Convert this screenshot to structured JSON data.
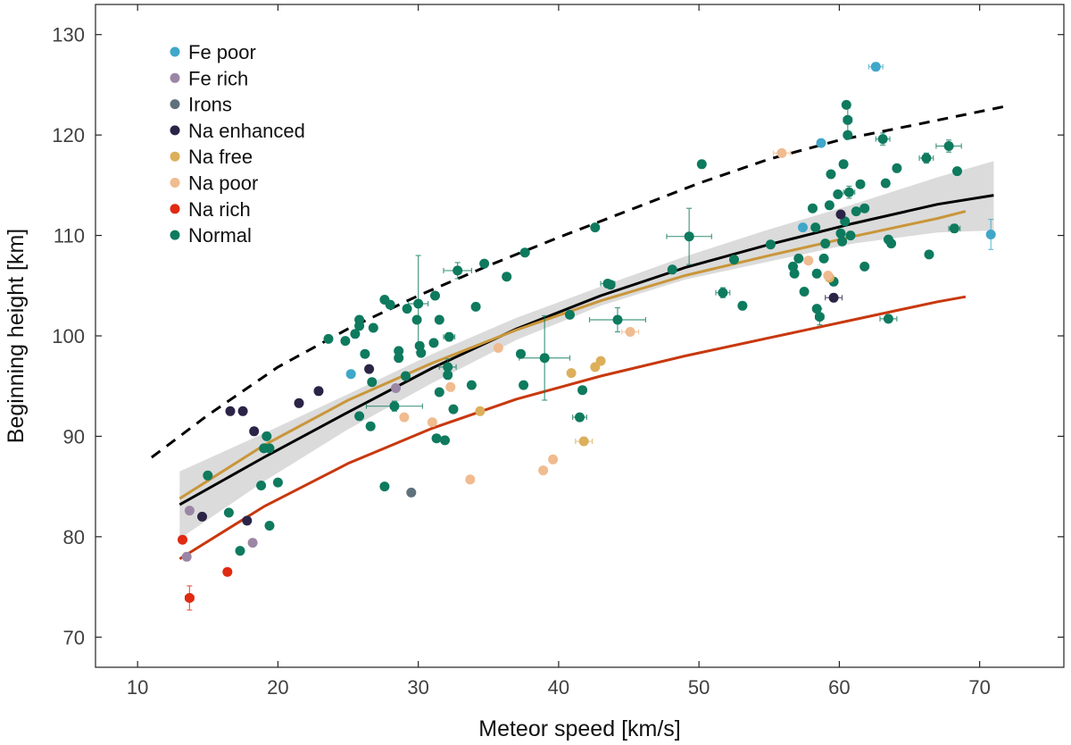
{
  "chart_data": {
    "type": "scatter",
    "xlabel": "Meteor speed [km/s]",
    "ylabel": "Beginning height [km]",
    "xlim": [
      7,
      76
    ],
    "ylim": [
      67,
      133
    ],
    "xticks": [
      10,
      20,
      30,
      40,
      50,
      60,
      70
    ],
    "yticks": [
      70,
      80,
      90,
      100,
      110,
      120,
      130
    ],
    "legend_position": "top-left",
    "series": [
      {
        "name": "Fe poor",
        "color": "#3fa7c9",
        "points": [
          [
            25.2,
            96.2
          ],
          [
            57.4,
            110.8
          ],
          [
            58.7,
            119.2
          ],
          [
            62.6,
            126.8
          ],
          [
            70.8,
            110.1
          ]
        ]
      },
      {
        "name": "Fe rich",
        "color": "#9b86a6",
        "points": [
          [
            13.7,
            82.6
          ],
          [
            13.5,
            78.0
          ],
          [
            18.2,
            79.4
          ],
          [
            28.4,
            94.8
          ]
        ]
      },
      {
        "name": "Irons",
        "color": "#5f717d",
        "points": [
          [
            29.5,
            84.4
          ]
        ]
      },
      {
        "name": "Na enhanced",
        "color": "#2b2447",
        "points": [
          [
            16.6,
            92.5
          ],
          [
            17.5,
            92.5
          ],
          [
            18.3,
            90.5
          ],
          [
            21.5,
            93.3
          ],
          [
            22.9,
            94.5
          ],
          [
            26.5,
            96.7
          ],
          [
            17.8,
            81.6
          ],
          [
            14.6,
            82.0
          ],
          [
            59.6,
            103.8
          ],
          [
            60.1,
            112.1
          ]
        ]
      },
      {
        "name": "Na free",
        "color": "#dcaf5a",
        "points": [
          [
            40.9,
            96.3
          ],
          [
            42.6,
            96.9
          ],
          [
            43.0,
            97.5
          ],
          [
            41.8,
            89.5
          ],
          [
            34.4,
            92.5
          ],
          [
            59.3,
            105.8
          ]
        ]
      },
      {
        "name": "Na poor",
        "color": "#f0bb8f",
        "points": [
          [
            29.0,
            91.9
          ],
          [
            31.0,
            91.4
          ],
          [
            32.3,
            94.9
          ],
          [
            35.7,
            98.8
          ],
          [
            33.7,
            85.7
          ],
          [
            38.9,
            86.6
          ],
          [
            39.6,
            87.7
          ],
          [
            45.1,
            100.4
          ],
          [
            55.9,
            118.2
          ],
          [
            57.8,
            107.5
          ],
          [
            59.2,
            106.0
          ]
        ]
      },
      {
        "name": "Na rich",
        "color": "#e02a12",
        "points": [
          [
            13.2,
            79.7
          ],
          [
            13.7,
            73.9
          ],
          [
            16.4,
            76.5
          ]
        ]
      },
      {
        "name": "Normal",
        "color": "#0e7a5e",
        "points": [
          [
            23.6,
            99.7
          ],
          [
            24.8,
            99.5
          ],
          [
            25.5,
            100.2
          ],
          [
            25.8,
            101.6
          ],
          [
            25.8,
            101.0
          ],
          [
            26.2,
            98.2
          ],
          [
            26.8,
            100.8
          ],
          [
            25.8,
            92.0
          ],
          [
            26.7,
            95.4
          ],
          [
            27.6,
            103.6
          ],
          [
            28.0,
            103.1
          ],
          [
            28.6,
            97.8
          ],
          [
            28.6,
            98.5
          ],
          [
            29.2,
            102.7
          ],
          [
            29.9,
            101.6
          ],
          [
            30.0,
            103.2
          ],
          [
            30.1,
            99.0
          ],
          [
            30.2,
            98.3
          ],
          [
            31.1,
            99.3
          ],
          [
            31.2,
            104.0
          ],
          [
            31.5,
            101.6
          ],
          [
            31.5,
            94.4
          ],
          [
            32.1,
            96.9
          ],
          [
            32.1,
            96.1
          ],
          [
            32.2,
            99.9
          ],
          [
            32.5,
            92.7
          ],
          [
            32.8,
            106.5
          ],
          [
            33.8,
            95.1
          ],
          [
            34.1,
            102.9
          ],
          [
            34.7,
            107.2
          ],
          [
            36.3,
            105.9
          ],
          [
            37.3,
            98.2
          ],
          [
            37.5,
            95.1
          ],
          [
            37.6,
            108.3
          ],
          [
            39.0,
            97.8
          ],
          [
            40.8,
            102.1
          ],
          [
            41.5,
            91.9
          ],
          [
            41.7,
            94.6
          ],
          [
            42.6,
            110.8
          ],
          [
            43.5,
            105.2
          ],
          [
            43.7,
            105.1
          ],
          [
            44.2,
            101.6
          ],
          [
            48.1,
            106.6
          ],
          [
            49.3,
            109.9
          ],
          [
            50.2,
            117.1
          ],
          [
            51.7,
            104.3
          ],
          [
            52.5,
            107.6
          ],
          [
            53.1,
            103.0
          ],
          [
            55.1,
            109.1
          ],
          [
            56.7,
            106.9
          ],
          [
            56.8,
            106.2
          ],
          [
            57.1,
            107.7
          ],
          [
            57.5,
            104.4
          ],
          [
            58.1,
            112.7
          ],
          [
            58.3,
            110.8
          ],
          [
            58.4,
            106.2
          ],
          [
            58.4,
            102.7
          ],
          [
            58.6,
            101.9
          ],
          [
            58.9,
            107.7
          ],
          [
            59.0,
            109.2
          ],
          [
            59.3,
            113.0
          ],
          [
            59.4,
            116.1
          ],
          [
            59.6,
            105.4
          ],
          [
            59.9,
            114.1
          ],
          [
            60.1,
            110.2
          ],
          [
            60.2,
            109.4
          ],
          [
            60.3,
            117.1
          ],
          [
            60.4,
            111.4
          ],
          [
            60.5,
            123.0
          ],
          [
            60.6,
            121.5
          ],
          [
            60.6,
            120.0
          ],
          [
            60.7,
            114.3
          ],
          [
            60.8,
            110.0
          ],
          [
            61.2,
            112.4
          ],
          [
            61.5,
            115.1
          ],
          [
            61.8,
            112.7
          ],
          [
            61.8,
            106.9
          ],
          [
            63.1,
            119.6
          ],
          [
            63.3,
            115.2
          ],
          [
            63.5,
            109.6
          ],
          [
            63.5,
            101.7
          ],
          [
            63.7,
            109.2
          ],
          [
            64.1,
            116.7
          ],
          [
            66.2,
            117.7
          ],
          [
            66.4,
            108.1
          ],
          [
            67.8,
            118.9
          ],
          [
            68.2,
            110.7
          ],
          [
            68.4,
            116.4
          ],
          [
            19.0,
            88.8
          ],
          [
            19.2,
            90.0
          ],
          [
            19.4,
            88.8
          ],
          [
            18.8,
            85.1
          ],
          [
            20.0,
            85.4
          ],
          [
            19.4,
            81.1
          ],
          [
            16.5,
            82.4
          ],
          [
            17.3,
            78.6
          ],
          [
            15.0,
            86.1
          ],
          [
            26.6,
            91.0
          ],
          [
            27.6,
            85.0
          ],
          [
            28.3,
            93.0
          ],
          [
            29.1,
            96.0
          ],
          [
            31.3,
            89.8
          ],
          [
            31.9,
            89.6
          ]
        ]
      }
    ],
    "fits": [
      {
        "name": "black fit",
        "color": "#000000",
        "style": "solid",
        "x": [
          13,
          19,
          25,
          31,
          37,
          43,
          49,
          55,
          61,
          67,
          71
        ],
        "y": [
          83.2,
          87.9,
          92.4,
          96.8,
          100.7,
          104.0,
          106.8,
          109.1,
          111.2,
          113.1,
          114.0
        ]
      },
      {
        "name": "gold fit",
        "color": "#c9963a",
        "style": "solid",
        "x": [
          13,
          19,
          25,
          31,
          37,
          43,
          49,
          55,
          61,
          67,
          69
        ],
        "y": [
          83.8,
          89.1,
          93.6,
          97.3,
          100.6,
          103.5,
          106.0,
          108.0,
          109.9,
          111.7,
          112.4
        ]
      },
      {
        "name": "red fit",
        "color": "#c8380e",
        "style": "solid",
        "x": [
          13,
          19,
          25,
          31,
          37,
          43,
          49,
          55,
          61,
          67,
          69
        ],
        "y": [
          77.8,
          83.0,
          87.3,
          90.8,
          93.7,
          96.0,
          98.0,
          99.8,
          101.6,
          103.4,
          103.9
        ]
      },
      {
        "name": "dashed fit",
        "color": "#000000",
        "style": "dashed",
        "x": [
          11,
          15,
          20,
          25,
          30,
          35,
          40,
          45,
          50,
          55,
          60,
          65,
          72
        ],
        "y": [
          87.9,
          92.1,
          96.9,
          100.7,
          104.0,
          107.0,
          109.8,
          112.5,
          115.2,
          117.6,
          119.5,
          120.9,
          122.9
        ]
      }
    ],
    "confidence_band": {
      "x": [
        13,
        19,
        25,
        31,
        37,
        43,
        49,
        55,
        61,
        67,
        71
      ],
      "lower": [
        79.8,
        85.5,
        90.7,
        95.3,
        99.6,
        103.0,
        105.6,
        107.4,
        109.2,
        110.3,
        110.5
      ],
      "upper": [
        86.5,
        90.3,
        94.2,
        98.2,
        101.8,
        104.9,
        107.9,
        110.6,
        113.1,
        115.8,
        117.4
      ]
    },
    "error_bars": [
      {
        "x": 39.0,
        "y": 97.8,
        "xerr": 1.8,
        "yerr": 4.2
      },
      {
        "x": 49.3,
        "y": 109.9,
        "xerr": 1.6,
        "yerr": 2.8
      },
      {
        "x": 44.2,
        "y": 101.6,
        "xerr": 2.0,
        "yerr": 1.2
      },
      {
        "x": 30.0,
        "y": 103.2,
        "xerr": 0.7,
        "yerr": 4.8
      },
      {
        "x": 32.8,
        "y": 106.5,
        "xerr": 1.0,
        "yerr": 0.8
      },
      {
        "x": 13.7,
        "y": 73.9,
        "xerr": 0.3,
        "yerr": 1.2
      },
      {
        "x": 28.3,
        "y": 93.0,
        "xerr": 2.0,
        "yerr": 0.5
      },
      {
        "x": 32.1,
        "y": 96.9,
        "xerr": 0.6,
        "yerr": 0.8
      },
      {
        "x": 67.8,
        "y": 118.9,
        "xerr": 0.9,
        "yerr": 0.6
      },
      {
        "x": 66.2,
        "y": 117.7,
        "xerr": 0.5,
        "yerr": 0.5
      },
      {
        "x": 62.6,
        "y": 126.8,
        "xerr": 0.5,
        "yerr": 0.4
      },
      {
        "x": 70.8,
        "y": 110.1,
        "xerr": 0.2,
        "yerr": 1.5
      },
      {
        "x": 60.7,
        "y": 114.3,
        "xerr": 0.4,
        "yerr": 0.6
      },
      {
        "x": 60.6,
        "y": 121.5,
        "xerr": 0.3,
        "yerr": 1.2
      },
      {
        "x": 55.9,
        "y": 118.2,
        "xerr": 0.6,
        "yerr": 0.3
      },
      {
        "x": 63.5,
        "y": 101.7,
        "xerr": 0.6,
        "yerr": 0.3
      },
      {
        "x": 58.6,
        "y": 101.9,
        "xerr": 0.3,
        "yerr": 0.8
      },
      {
        "x": 63.1,
        "y": 119.6,
        "xerr": 0.5,
        "yerr": 0.6
      },
      {
        "x": 45.1,
        "y": 100.4,
        "xerr": 0.6,
        "yerr": 0.3
      },
      {
        "x": 41.8,
        "y": 89.5,
        "xerr": 0.6,
        "yerr": 0.3
      },
      {
        "x": 51.7,
        "y": 104.3,
        "xerr": 0.5,
        "yerr": 0.5
      },
      {
        "x": 59.6,
        "y": 103.8,
        "xerr": 0.6,
        "yerr": 0.3
      },
      {
        "x": 32.2,
        "y": 99.9,
        "xerr": 0.4,
        "yerr": 0.4
      },
      {
        "x": 41.5,
        "y": 91.9,
        "xerr": 0.5,
        "yerr": 0.3
      },
      {
        "x": 68.2,
        "y": 110.7,
        "xerr": 0.4,
        "yerr": 0.4
      },
      {
        "x": 43.5,
        "y": 105.2,
        "xerr": 0.5,
        "yerr": 0.3
      }
    ]
  }
}
